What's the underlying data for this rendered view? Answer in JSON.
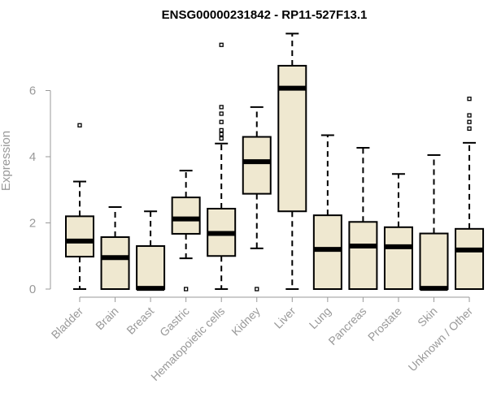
{
  "chart_data": {
    "type": "box",
    "title": "ENSG00000231842 - RP11-527F13.1",
    "xlabel": "",
    "ylabel": "Expression",
    "ylim": [
      0,
      8
    ],
    "yticks": [
      0,
      2,
      4,
      6
    ],
    "grid": false,
    "legend": "none",
    "box_fill": "#EFE8D0",
    "box_stroke": "#000000",
    "categories": [
      "Bladder",
      "Brain",
      "Breast",
      "Gastric",
      "Hematopoietic cells",
      "Kidney",
      "Liver",
      "Lung",
      "Pancreas",
      "Prostate",
      "Skin",
      "Unknown / Other"
    ],
    "boxes": [
      {
        "min": 0,
        "q1": 0.98,
        "median": 1.45,
        "q3": 2.2,
        "max": 3.25,
        "outliers": [
          4.95
        ]
      },
      {
        "min": 0,
        "q1": 0,
        "median": 0.95,
        "q3": 1.57,
        "max": 2.48,
        "outliers": []
      },
      {
        "min": 0,
        "q1": 0,
        "median": 0.02,
        "q3": 1.3,
        "max": 2.35,
        "outliers": []
      },
      {
        "min": 0.93,
        "q1": 1.67,
        "median": 2.12,
        "q3": 2.77,
        "max": 3.58,
        "outliers": [
          0
        ]
      },
      {
        "min": 0,
        "q1": 1.0,
        "median": 1.68,
        "q3": 2.43,
        "max": 4.4,
        "outliers": [
          4.55,
          4.68,
          4.8,
          5.05,
          5.3,
          5.5,
          7.38
        ]
      },
      {
        "min": 1.23,
        "q1": 2.88,
        "median": 3.85,
        "q3": 4.6,
        "max": 5.5,
        "outliers": [
          0
        ]
      },
      {
        "min": 0,
        "q1": 2.35,
        "median": 6.07,
        "q3": 6.75,
        "max": 7.72,
        "outliers": []
      },
      {
        "min": 0,
        "q1": 0,
        "median": 1.2,
        "q3": 2.23,
        "max": 4.65,
        "outliers": []
      },
      {
        "min": 0,
        "q1": 0,
        "median": 1.3,
        "q3": 2.03,
        "max": 4.27,
        "outliers": []
      },
      {
        "min": 0,
        "q1": 0,
        "median": 1.28,
        "q3": 1.87,
        "max": 3.48,
        "outliers": []
      },
      {
        "min": 0,
        "q1": 0,
        "median": 0.02,
        "q3": 1.68,
        "max": 4.05,
        "outliers": []
      },
      {
        "min": 0,
        "q1": 0,
        "median": 1.18,
        "q3": 1.82,
        "max": 4.42,
        "outliers": [
          4.85,
          5.05,
          5.25,
          5.75
        ]
      }
    ]
  }
}
